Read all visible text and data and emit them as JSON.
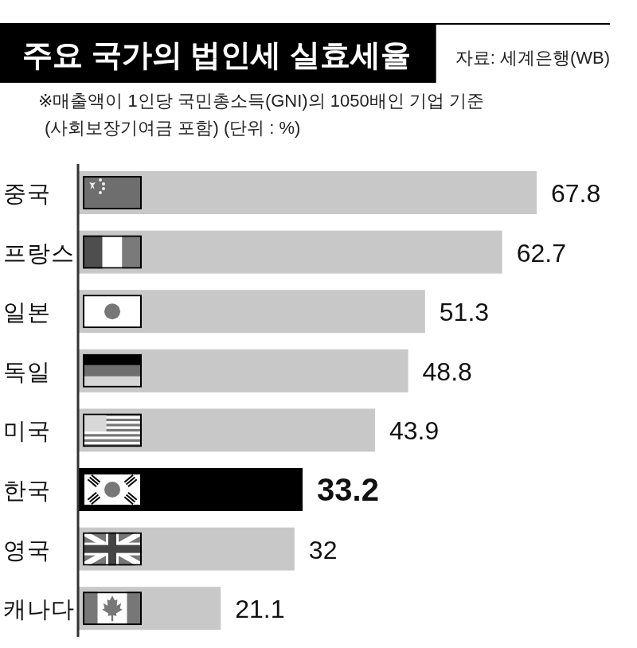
{
  "chart_data": {
    "type": "bar",
    "orientation": "horizontal",
    "title": "주요 국가의 법인세 실효세율",
    "subtitle": "※매출액이 1인당 국민총소득(GNI)의 1050배인 기업 기준\n(사회보장기여금 포함) (단위 : %)",
    "annotations": [
      "자료: 세계은행(WB)"
    ],
    "categories": [
      "중국",
      "프랑스",
      "일본",
      "독일",
      "미국",
      "한국",
      "영국",
      "캐나다"
    ],
    "values": [
      67.8,
      62.7,
      51.3,
      48.8,
      43.9,
      33.2,
      32,
      21.1
    ],
    "colors": [
      "#c8c8c8",
      "#c8c8c8",
      "#c8c8c8",
      "#c8c8c8",
      "#c8c8c8",
      "#000000",
      "#c8c8c8",
      "#c8c8c8"
    ],
    "data_labels": true
  }
}
